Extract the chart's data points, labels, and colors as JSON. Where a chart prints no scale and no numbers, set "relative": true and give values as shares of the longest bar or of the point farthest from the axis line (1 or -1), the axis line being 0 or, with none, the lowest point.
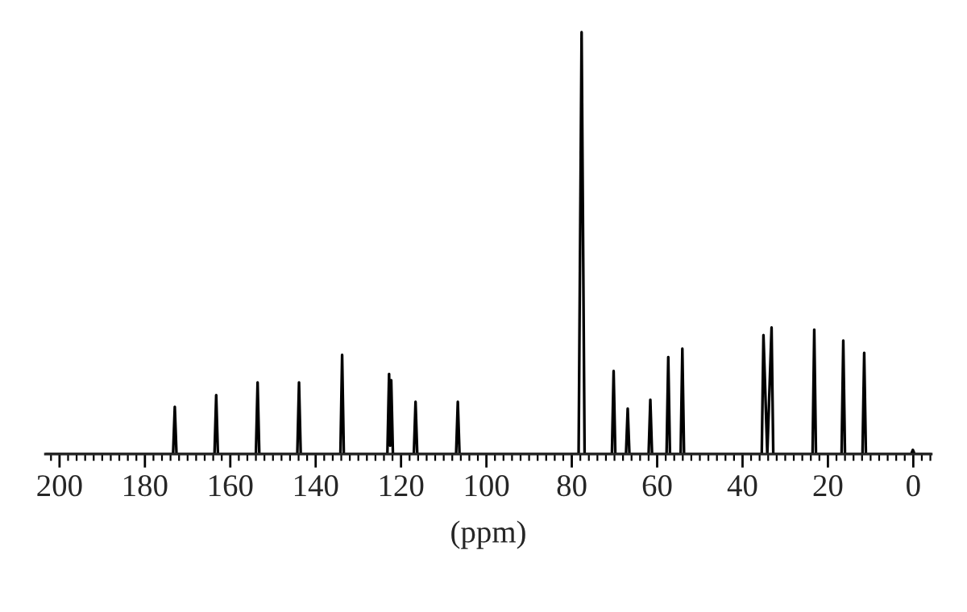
{
  "chart_data": {
    "type": "line",
    "relative": true,
    "xlabel": "(ppm)",
    "xlim": [
      203.3,
      -4.2
    ],
    "xticks": [
      200,
      180,
      160,
      140,
      120,
      100,
      80,
      60,
      40,
      20,
      0
    ],
    "tick_labels": "x",
    "grid": false,
    "legend": false,
    "marker": "none",
    "line_style": "solid",
    "series": [
      {
        "color": "#000000",
        "x": [
          203.3,
          173.4,
          173.0,
          172.6,
          163.7,
          163.3,
          162.9,
          154.0,
          153.6,
          153.2,
          144.3,
          143.9,
          143.5,
          134.2,
          133.8,
          133.4,
          123.2,
          122.8,
          122.55,
          122.3,
          121.9,
          117.0,
          116.6,
          116.2,
          107.1,
          106.7,
          106.3,
          78.4,
          77.7,
          77.0,
          70.6,
          70.2,
          69.8,
          67.3,
          66.9,
          66.5,
          62.0,
          61.6,
          61.2,
          57.8,
          57.4,
          57.0,
          54.5,
          54.1,
          53.7,
          35.5,
          35.1,
          34.2,
          33.2,
          32.8,
          23.6,
          23.2,
          22.8,
          16.8,
          16.4,
          16.0,
          11.9,
          11.5,
          11.1,
          0.5,
          0.1,
          -0.3,
          -4.2
        ],
        "values": [
          0,
          0,
          0.112,
          0,
          0,
          0.14,
          0,
          0,
          0.17,
          0,
          0,
          0.17,
          0,
          0,
          0.235,
          0,
          0,
          0.19,
          0.02,
          0.175,
          0,
          0,
          0.124,
          0,
          0,
          0.124,
          0,
          0,
          1,
          0,
          0,
          0.197,
          0,
          0,
          0.108,
          0,
          0,
          0.129,
          0,
          0,
          0.23,
          0,
          0,
          0.25,
          0,
          0,
          0.282,
          0,
          0.3,
          0,
          0,
          0.295,
          0,
          0,
          0.269,
          0,
          0,
          0.24,
          0,
          0,
          0.01,
          0,
          0
        ]
      }
    ]
  }
}
